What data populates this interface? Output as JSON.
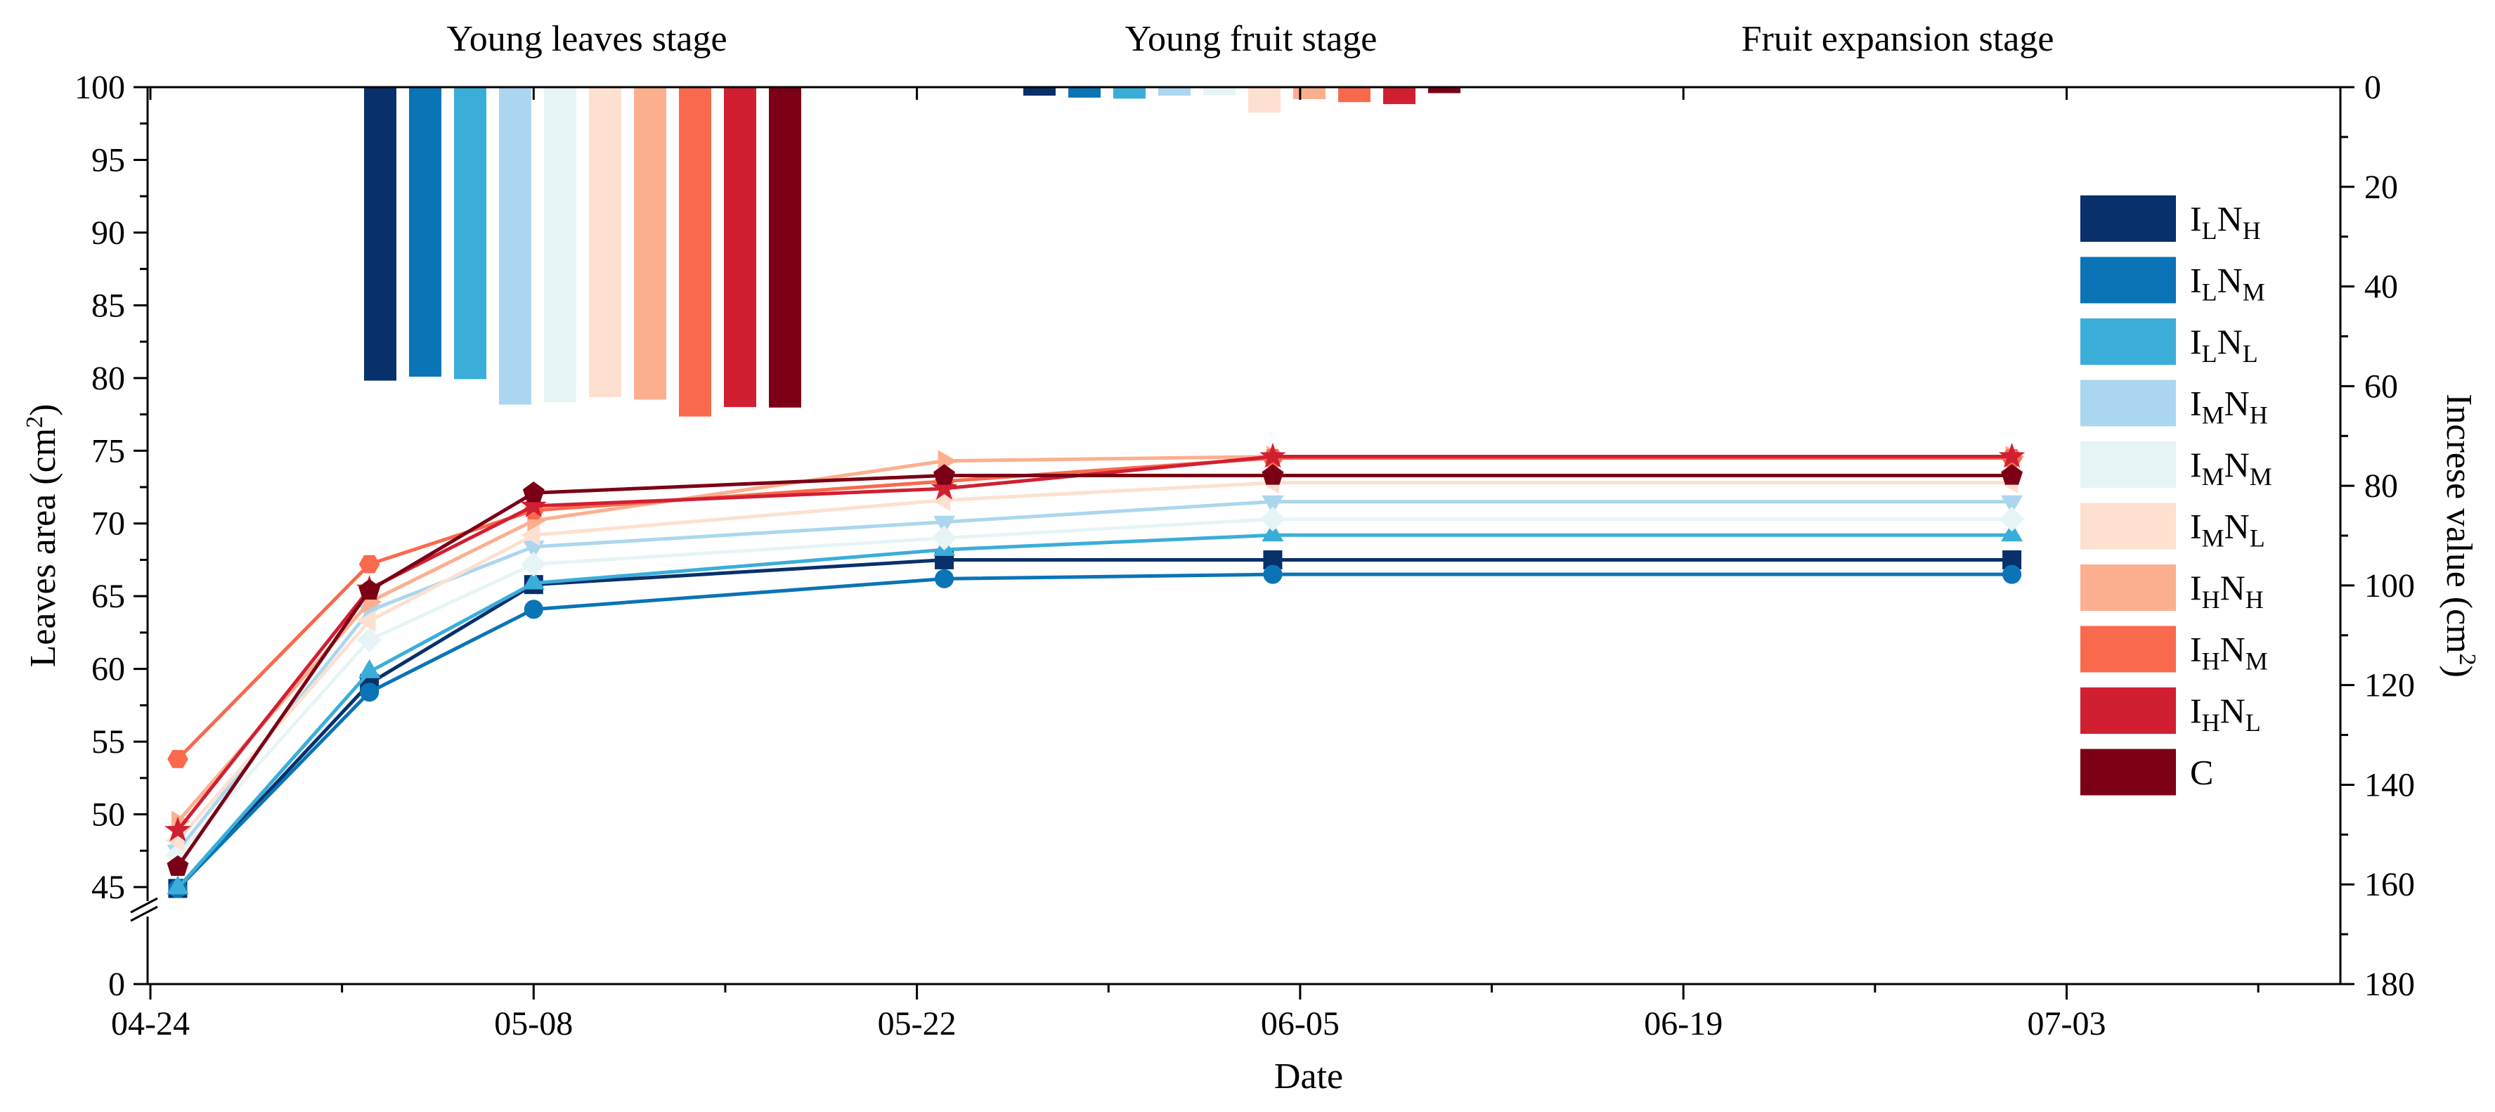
{
  "chart_data": {
    "type": "line",
    "xlabel": "Date",
    "ylabel": "Leaves area (cm²)",
    "ylabel_right": "Increse value (cm²)",
    "x_ticks": [
      "04-24",
      "05-08",
      "05-22",
      "06-05",
      "06-19",
      "07-03"
    ],
    "x_tick_days": [
      0,
      14,
      28,
      42,
      56,
      70
    ],
    "xlim_days": [
      0,
      80
    ],
    "y_left": {
      "ticks": [
        0,
        45,
        50,
        55,
        60,
        65,
        70,
        75,
        80,
        85,
        90,
        95,
        100
      ],
      "break_between": [
        0,
        45
      ]
    },
    "y_right": {
      "ticks": [
        0,
        20,
        40,
        60,
        80,
        100,
        120,
        140,
        160,
        180
      ],
      "range": [
        0,
        180
      ],
      "inverted": true
    },
    "stages": [
      "Young leaves stage",
      "Young fruit stage",
      "Fruit expansion stage"
    ],
    "x_days": [
      1,
      8,
      14,
      29,
      41,
      68
    ],
    "series": [
      {
        "name": "ILNH",
        "base": "I",
        "sub1": "L",
        "mid": "N",
        "sub2": "H",
        "color": "#08306b",
        "marker": "square",
        "values": [
          42.8,
          59.0,
          65.8,
          67.5,
          67.5,
          67.5
        ]
      },
      {
        "name": "ILNM",
        "base": "I",
        "sub1": "L",
        "mid": "N",
        "sub2": "M",
        "color": "#0a74b6",
        "marker": "circle",
        "values": [
          42.6,
          58.4,
          64.1,
          66.2,
          66.5,
          66.5
        ]
      },
      {
        "name": "ILNL",
        "base": "I",
        "sub1": "L",
        "mid": "N",
        "sub2": "L",
        "color": "#3aaed9",
        "marker": "triangle-up",
        "values": [
          43.4,
          59.8,
          65.9,
          68.2,
          69.2,
          69.2
        ]
      },
      {
        "name": "IMNH",
        "base": "I",
        "sub1": "M",
        "mid": "N",
        "sub2": "H",
        "color": "#abd6ef",
        "marker": "triangle-down",
        "values": [
          47.5,
          64.0,
          68.4,
          70.1,
          71.5,
          71.5
        ]
      },
      {
        "name": "IMNM",
        "base": "I",
        "sub1": "M",
        "mid": "N",
        "sub2": "M",
        "color": "#e6f4f6",
        "marker": "diamond",
        "values": [
          47.2,
          62.0,
          67.2,
          69.0,
          70.3,
          70.3
        ]
      },
      {
        "name": "IMNL",
        "base": "I",
        "sub1": "M",
        "mid": "N",
        "sub2": "L",
        "color": "#fde0cf",
        "marker": "triangle-left",
        "values": [
          48.2,
          63.3,
          69.2,
          71.6,
          72.8,
          72.8
        ]
      },
      {
        "name": "IHNH",
        "base": "I",
        "sub1": "H",
        "mid": "N",
        "sub2": "H",
        "color": "#fcaf8f",
        "marker": "triangle-right",
        "values": [
          49.5,
          64.6,
          70.2,
          74.3,
          74.6,
          74.6
        ]
      },
      {
        "name": "IHNM",
        "base": "I",
        "sub1": "H",
        "mid": "N",
        "sub2": "M",
        "color": "#f9694d",
        "marker": "hexagon",
        "values": [
          53.8,
          67.2,
          70.9,
          72.9,
          74.5,
          74.5
        ]
      },
      {
        "name": "IHNL",
        "base": "I",
        "sub1": "H",
        "mid": "N",
        "sub2": "L",
        "color": "#d11f32",
        "marker": "star",
        "values": [
          48.9,
          65.5,
          71.2,
          72.4,
          74.6,
          74.6
        ]
      },
      {
        "name": "C",
        "base": "C",
        "sub1": "",
        "mid": "",
        "sub2": "",
        "color": "#7b0016",
        "marker": "pentagon",
        "values": [
          46.4,
          65.4,
          72.1,
          73.3,
          73.3,
          73.3
        ]
      }
    ],
    "increase_bars": [
      {
        "stage": "Young leaves stage",
        "values": [
          58.9,
          58.1,
          58.6,
          63.7,
          63.2,
          62.2,
          62.7,
          66.1,
          64.2,
          64.3
        ]
      },
      {
        "stage": "Young fruit stage",
        "values": [
          1.7,
          2.1,
          2.3,
          1.7,
          1.6,
          5.1,
          2.4,
          3.0,
          3.4,
          1.2
        ]
      },
      {
        "stage": "Fruit expansion stage",
        "values": [
          0,
          0,
          0,
          0,
          0,
          0,
          0,
          0,
          0,
          0
        ]
      }
    ]
  }
}
